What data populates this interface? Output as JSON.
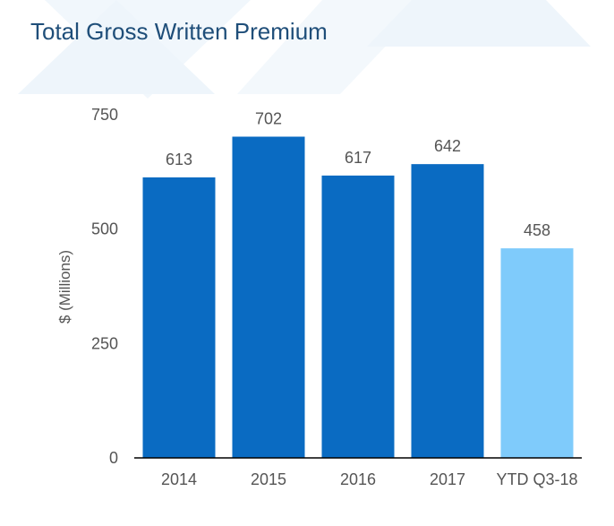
{
  "chart_data": {
    "type": "bar",
    "title": "Total Gross Written Premium",
    "xlabel": "",
    "ylabel": "$ (Millions)",
    "categories": [
      "2014",
      "2015",
      "2016",
      "2017",
      "YTD Q3-18"
    ],
    "values": [
      613,
      702,
      617,
      642,
      458
    ],
    "ylim": [
      0,
      750
    ],
    "yticks": [
      0,
      250,
      500,
      750
    ],
    "grid": false,
    "colors": {
      "bar": "#0a6bc2",
      "highlight_bar": "#7fcbfb",
      "axis": "#000000",
      "tick_text": "#555555",
      "data_label": "#555555",
      "title": "#1f4e79"
    },
    "highlight_index": 4
  }
}
